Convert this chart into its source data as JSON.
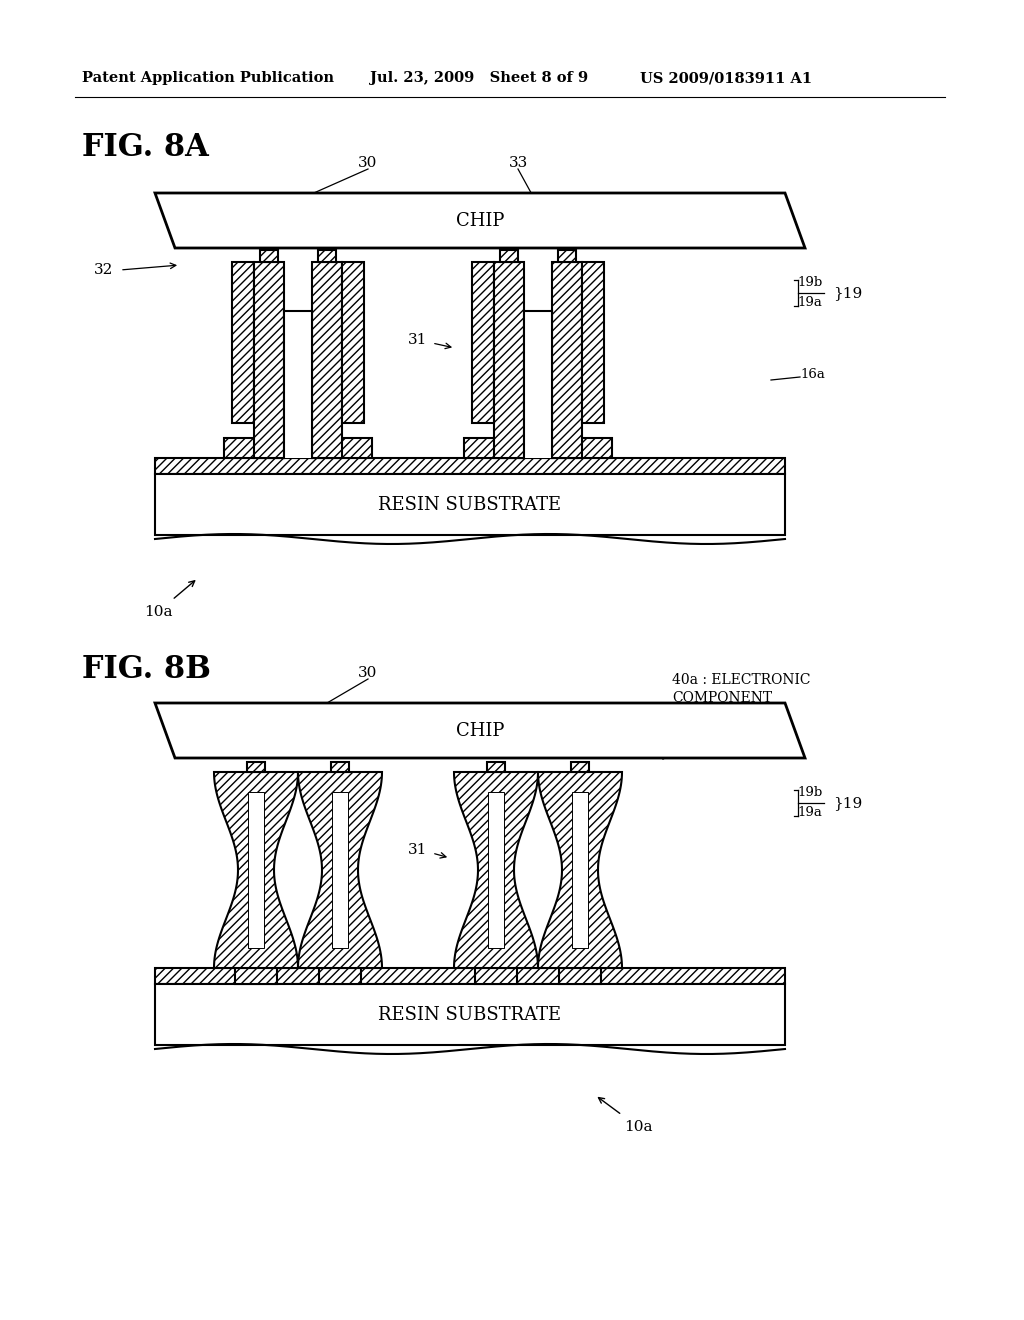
{
  "bg_color": "#ffffff",
  "header_left": "Patent Application Publication",
  "header_mid": "Jul. 23, 2009   Sheet 8 of 9",
  "header_right": "US 2009/0183911 A1",
  "fig8a_label": "FIG. 8A",
  "fig8b_label": "FIG. 8B",
  "line_color": "#000000"
}
